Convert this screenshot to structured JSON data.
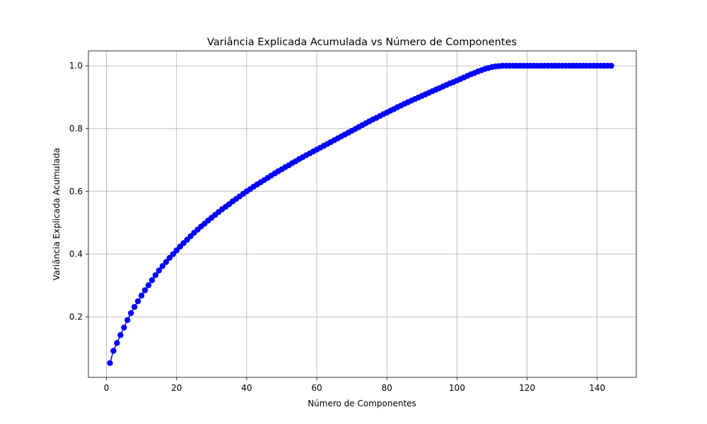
{
  "chart_data": {
    "type": "line",
    "title": "Variância Explicada Acumulada vs Número de Componentes",
    "xlabel": "Número de Componentes",
    "ylabel": "Variância Explicada Acumulada",
    "xlim": [
      -5.15,
      151.15
    ],
    "ylim": [
      0.0075,
      1.0475
    ],
    "xticks": [
      0,
      20,
      40,
      60,
      80,
      100,
      120,
      140
    ],
    "yticks": [
      0.2,
      0.4,
      0.6,
      0.8,
      1.0
    ],
    "xtick_labels": [
      "0",
      "20",
      "40",
      "60",
      "80",
      "100",
      "120",
      "140"
    ],
    "ytick_labels": [
      "0.2",
      "0.4",
      "0.6",
      "0.8",
      "1.0"
    ],
    "grid": true,
    "color": "#0000ff",
    "marker": "circle",
    "series": [
      {
        "x": [
          1,
          2,
          3,
          4,
          5,
          6,
          7,
          8,
          9,
          10,
          11,
          12,
          13,
          14,
          15,
          16,
          17,
          18,
          19,
          20,
          21,
          22,
          23,
          24,
          25,
          26,
          27,
          28,
          29,
          30,
          31,
          32,
          33,
          34,
          35,
          36,
          37,
          38,
          39,
          40,
          41,
          42,
          43,
          44,
          45,
          46,
          47,
          48,
          49,
          50,
          51,
          52,
          53,
          54,
          55,
          56,
          57,
          58,
          59,
          60,
          61,
          62,
          63,
          64,
          65,
          66,
          67,
          68,
          69,
          70,
          71,
          72,
          73,
          74,
          75,
          76,
          77,
          78,
          79,
          80,
          81,
          82,
          83,
          84,
          85,
          86,
          87,
          88,
          89,
          90,
          91,
          92,
          93,
          94,
          95,
          96,
          97,
          98,
          99,
          100,
          101,
          102,
          103,
          104,
          105,
          106,
          107,
          108,
          109,
          110,
          111,
          112,
          113,
          114,
          115,
          116,
          117,
          118,
          119,
          120,
          121,
          122,
          123,
          124,
          125,
          126,
          127,
          128,
          129,
          130,
          131,
          132,
          133,
          134,
          135,
          136,
          137,
          138,
          139,
          140,
          141,
          142,
          143,
          144
        ],
        "values": [
          0.053,
          0.092,
          0.117,
          0.142,
          0.166,
          0.19,
          0.212,
          0.232,
          0.25,
          0.268,
          0.285,
          0.301,
          0.317,
          0.333,
          0.348,
          0.362,
          0.375,
          0.388,
          0.4,
          0.412,
          0.424,
          0.435,
          0.446,
          0.457,
          0.468,
          0.478,
          0.488,
          0.497,
          0.507,
          0.516,
          0.525,
          0.534,
          0.543,
          0.551,
          0.559,
          0.568,
          0.576,
          0.584,
          0.592,
          0.6,
          0.607,
          0.615,
          0.622,
          0.629,
          0.636,
          0.643,
          0.65,
          0.657,
          0.664,
          0.67,
          0.677,
          0.683,
          0.69,
          0.696,
          0.703,
          0.709,
          0.715,
          0.721,
          0.727,
          0.733,
          0.739,
          0.745,
          0.751,
          0.757,
          0.763,
          0.769,
          0.775,
          0.781,
          0.787,
          0.793,
          0.799,
          0.805,
          0.811,
          0.817,
          0.823,
          0.829,
          0.834,
          0.84,
          0.846,
          0.851,
          0.857,
          0.862,
          0.868,
          0.873,
          0.879,
          0.884,
          0.889,
          0.894,
          0.899,
          0.904,
          0.909,
          0.914,
          0.919,
          0.924,
          0.929,
          0.934,
          0.939,
          0.944,
          0.948,
          0.953,
          0.958,
          0.963,
          0.968,
          0.973,
          0.977,
          0.982,
          0.986,
          0.99,
          0.993,
          0.996,
          0.998,
          0.999,
          1.0,
          1.0,
          1.0,
          1.0,
          1.0,
          1.0,
          1.0,
          1.0,
          1.0,
          1.0,
          1.0,
          1.0,
          1.0,
          1.0,
          1.0,
          1.0,
          1.0,
          1.0,
          1.0,
          1.0,
          1.0,
          1.0,
          1.0,
          1.0,
          1.0,
          1.0,
          1.0,
          1.0,
          1.0,
          1.0,
          1.0,
          1.0
        ]
      }
    ]
  }
}
